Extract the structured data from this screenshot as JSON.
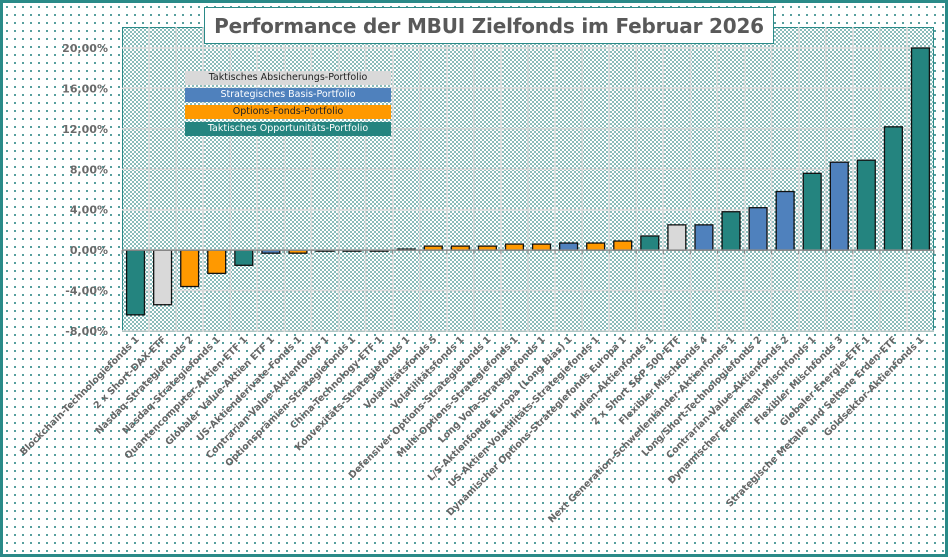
{
  "chart_data": {
    "type": "bar",
    "title": "Performance der MBUI Zielfonds im Februar 2026",
    "xlabel": "",
    "ylabel": "",
    "ylim": [
      -8,
      20
    ],
    "yticks": [
      20,
      16,
      12,
      8,
      4,
      0,
      -4,
      -8
    ],
    "ytick_labels": [
      "20,00%",
      "16,00%",
      "12,00%",
      "8,00%",
      "4,00%",
      "0,00%",
      "-4,00%",
      "-8,00%"
    ],
    "grid": true,
    "legend_position": "top-left",
    "legend": [
      {
        "name": "Taktisches Absicherungs-Portfolio",
        "color": "#d9d9d9",
        "text_color": "#222222"
      },
      {
        "name": "Strategisches Basis-Portfolio",
        "color": "#4f81bd",
        "text_color": "#ffffff"
      },
      {
        "name": "Options-Fonds-Portfolio",
        "color": "#ff9900",
        "text_color": "#222222"
      },
      {
        "name": "Taktisches Opportunitäts-Portfolio",
        "color": "#24847f",
        "text_color": "#ffffff"
      }
    ],
    "categories": [
      "Blockchain-Technologiefonds 1",
      "2 x Short-DAX-ETF",
      "Nasdaq-Strategiefonds 2",
      "Nasdaq-Strategiefonds 1",
      "Quantencomputer-Aktien-ETF 1",
      "Globaler Value-Aktien ETF 1",
      "US-Aktienderivate-Fonds 1",
      "Contrarian-Value-Aktienfonds 1",
      "Optionsprämien-Strategiefonds 1",
      "China-Technology-ETF 1",
      "Konvexitäts-Strategiefonds 1",
      "Volatilitätsfonds 5",
      "Volatilitätsfonds 1",
      "Defensiver Options-Strategiefonds 1",
      "Multi-Options-Strategiefonds 1",
      "Long Vola-Strategiefonds 1",
      "L/S-Aktienfonds Europa (Long Bias) 1",
      "US-Aktien-Volatilitäts-Strategiefonds 1",
      "Dynamischer Options-Strategiefonds Europa 1",
      "Indien-Aktienfonds 1",
      "2 x Short S&P 500-ETF",
      "Flexibler Mischfonds 4",
      "Next Generation-Schwellenländer-Aktienfonds 1",
      "Long/Short-Technologiefonds 2",
      "Contrarian-Value-Aktienfonds 2",
      "Dynamischer Edelmetall-Mischfonds 1",
      "Flexibler Mischfonds 3",
      "Globaler Energie-ETF 1",
      "Strategische Metalle und Seltene Erden-ETF",
      "Goldsektor-Aktienfonds 1"
    ],
    "values": [
      -6.4,
      -5.4,
      -3.6,
      -2.3,
      -1.5,
      -0.3,
      -0.3,
      -0.1,
      -0.1,
      0.0,
      0.1,
      0.4,
      0.4,
      0.4,
      0.6,
      0.6,
      0.7,
      0.7,
      0.9,
      1.4,
      2.5,
      2.5,
      3.8,
      4.2,
      5.8,
      7.6,
      8.7,
      8.9,
      12.2,
      20.0
    ],
    "portfolio": [
      "Taktisches Opportunitäts-Portfolio",
      "Taktisches Absicherungs-Portfolio",
      "Options-Fonds-Portfolio",
      "Options-Fonds-Portfolio",
      "Taktisches Opportunitäts-Portfolio",
      "Strategisches Basis-Portfolio",
      "Options-Fonds-Portfolio",
      "Taktisches Opportunitäts-Portfolio",
      "Options-Fonds-Portfolio",
      "Taktisches Opportunitäts-Portfolio",
      "Options-Fonds-Portfolio",
      "Options-Fonds-Portfolio",
      "Options-Fonds-Portfolio",
      "Options-Fonds-Portfolio",
      "Options-Fonds-Portfolio",
      "Options-Fonds-Portfolio",
      "Strategisches Basis-Portfolio",
      "Options-Fonds-Portfolio",
      "Options-Fonds-Portfolio",
      "Taktisches Opportunitäts-Portfolio",
      "Taktisches Absicherungs-Portfolio",
      "Strategisches Basis-Portfolio",
      "Taktisches Opportunitäts-Portfolio",
      "Strategisches Basis-Portfolio",
      "Strategisches Basis-Portfolio",
      "Taktisches Opportunitäts-Portfolio",
      "Strategisches Basis-Portfolio",
      "Taktisches Opportunitäts-Portfolio",
      "Taktisches Opportunitäts-Portfolio",
      "Taktisches Opportunitäts-Portfolio"
    ]
  }
}
